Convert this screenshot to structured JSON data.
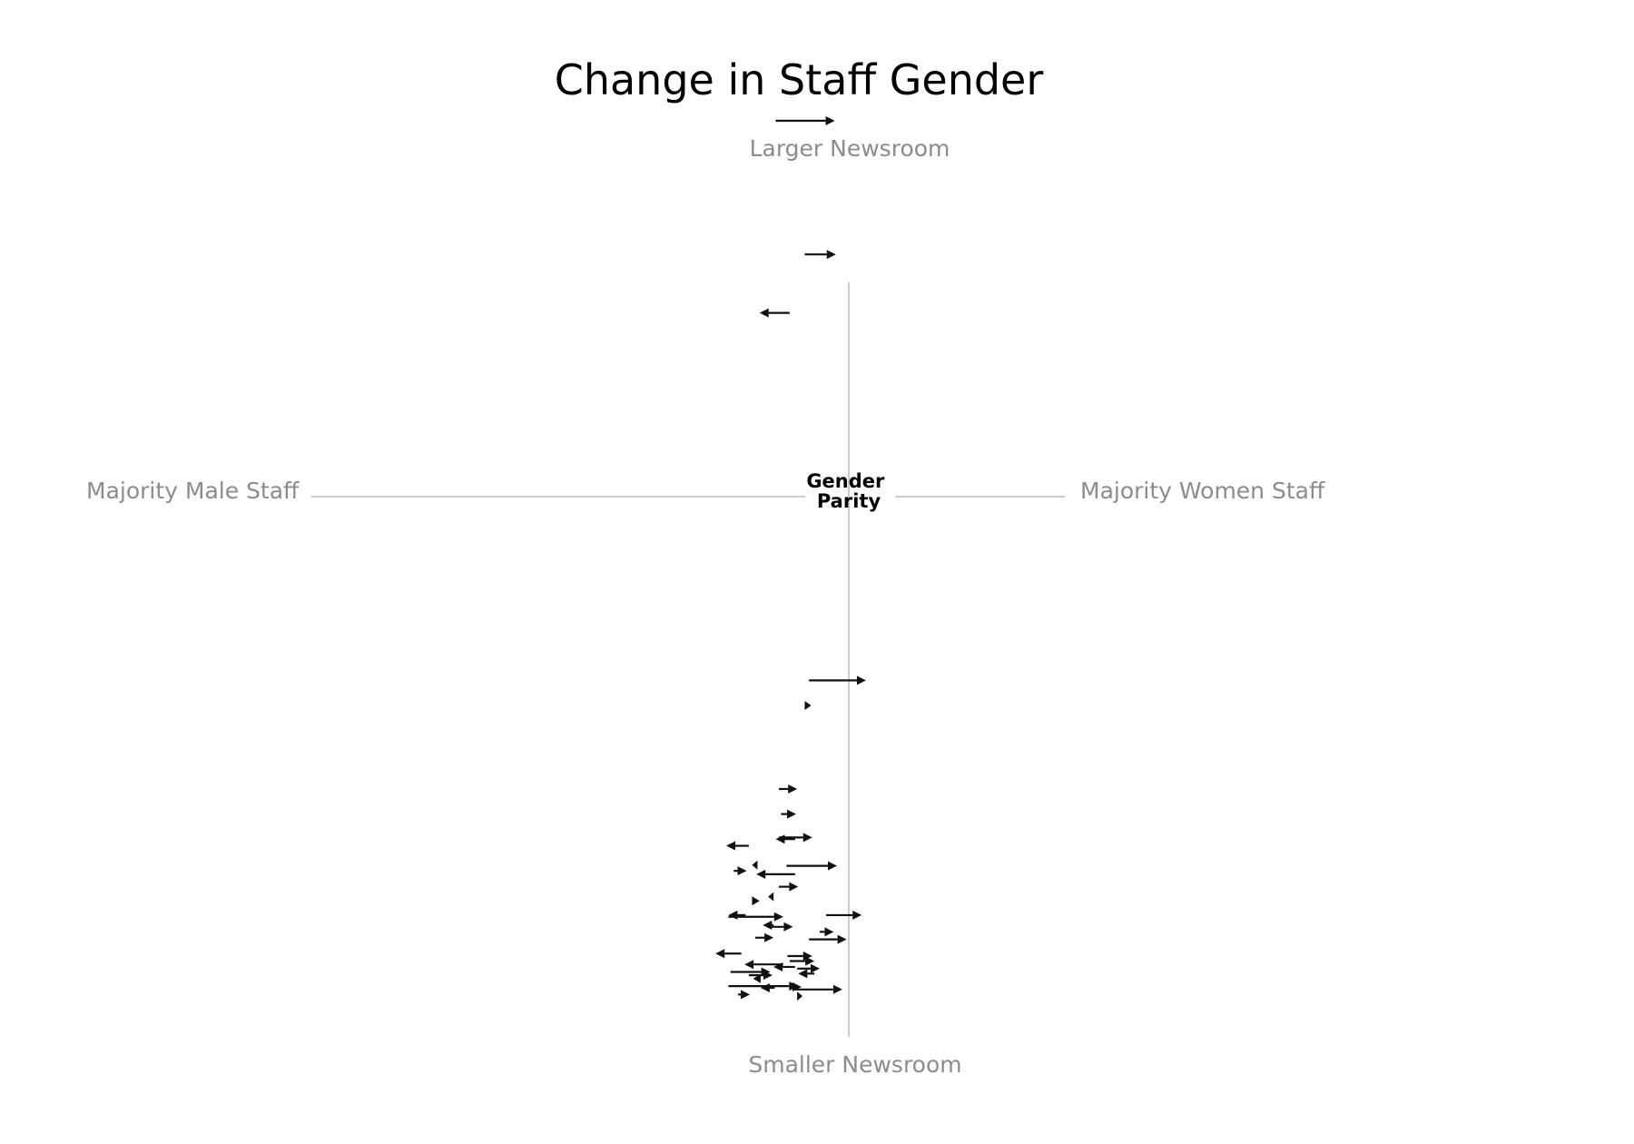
{
  "chart_data": {
    "type": "arrow",
    "title": "Change in Staff Gender",
    "labels": {
      "top": "Larger Newsroom",
      "bottom": "Smaller Newsroom",
      "left": "Majority Male Staff",
      "right": "Majority Women Staff",
      "center_line1": "Gender",
      "center_line2": "Parity"
    },
    "colors": {
      "arrow": "#111111",
      "guide": "#cccccc",
      "label": "#8c8c8c"
    },
    "xlim": [
      0,
      100
    ],
    "ylim": [
      0,
      100
    ],
    "arrows": [
      {
        "from": 43.2,
        "to": 48.7,
        "y": 95.0
      },
      {
        "from": 45.9,
        "to": 48.8,
        "y": 79.0
      },
      {
        "from": 44.5,
        "to": 41.7,
        "y": 72.0
      },
      {
        "from": 46.3,
        "to": 51.6,
        "y": 28.0
      },
      {
        "from": 45.9,
        "to": 46.5,
        "y": 25.0
      },
      {
        "from": 43.5,
        "to": 45.2,
        "y": 15.0
      },
      {
        "from": 43.7,
        "to": 45.1,
        "y": 12.0
      },
      {
        "from": 43.5,
        "to": 46.6,
        "y": 9.2
      },
      {
        "from": 45.0,
        "to": 43.2,
        "y": 9.0
      },
      {
        "from": 40.7,
        "to": 38.6,
        "y": 8.2
      },
      {
        "from": 41.5,
        "to": 41.0,
        "y": 5.9
      },
      {
        "from": 44.2,
        "to": 48.9,
        "y": 5.8
      },
      {
        "from": 39.3,
        "to": 40.5,
        "y": 5.2
      },
      {
        "from": 45.0,
        "to": 41.4,
        "y": 4.8
      },
      {
        "from": 43.5,
        "to": 45.3,
        "y": 3.3
      },
      {
        "from": 41.0,
        "to": 41.7,
        "y": 1.6
      },
      {
        "from": 43.0,
        "to": 42.5,
        "y": 2.1
      },
      {
        "from": 40.4,
        "to": 38.8,
        "y": -0.1
      },
      {
        "from": 38.8,
        "to": 43.9,
        "y": -0.3
      },
      {
        "from": 47.9,
        "to": 51.2,
        "y": -0.1
      },
      {
        "from": 43.0,
        "to": 42.0,
        "y": -1.3
      },
      {
        "from": 42.5,
        "to": 44.8,
        "y": -1.5
      },
      {
        "from": 41.3,
        "to": 43.0,
        "y": -2.8
      },
      {
        "from": 47.3,
        "to": 48.6,
        "y": -2.1
      },
      {
        "from": 46.3,
        "to": 49.8,
        "y": -3.0
      },
      {
        "from": 40.0,
        "to": 37.6,
        "y": -4.7
      },
      {
        "from": 44.3,
        "to": 46.6,
        "y": -5.0
      },
      {
        "from": 44.5,
        "to": 46.8,
        "y": -5.6
      },
      {
        "from": 43.9,
        "to": 40.3,
        "y": -6.0
      },
      {
        "from": 45.2,
        "to": 47.3,
        "y": -6.5
      },
      {
        "from": 45.0,
        "to": 43.0,
        "y": -6.3
      },
      {
        "from": 39.0,
        "to": 42.7,
        "y": -6.9
      },
      {
        "from": 40.7,
        "to": 42.9,
        "y": -7.3
      },
      {
        "from": 41.8,
        "to": 41.1,
        "y": -7.7
      },
      {
        "from": 46.8,
        "to": 45.3,
        "y": -7.1
      },
      {
        "from": 38.8,
        "to": 45.3,
        "y": -8.6
      },
      {
        "from": 43.1,
        "to": 41.8,
        "y": -8.8
      },
      {
        "from": 44.6,
        "to": 45.6,
        "y": -8.7
      },
      {
        "from": 45.0,
        "to": 49.4,
        "y": -9.0
      },
      {
        "from": 39.7,
        "to": 40.8,
        "y": -9.6
      },
      {
        "from": 45.2,
        "to": 45.7,
        "y": -9.8
      }
    ]
  }
}
